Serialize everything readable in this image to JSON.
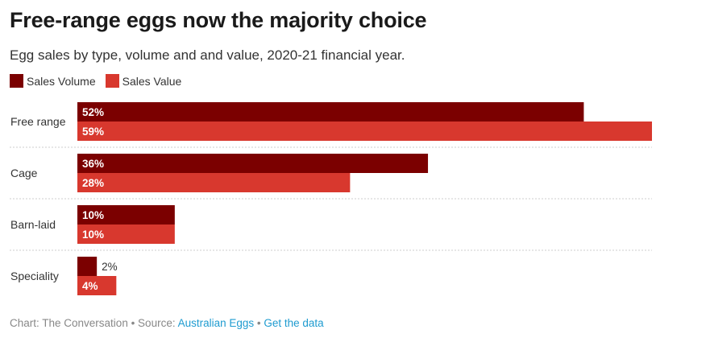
{
  "title": "Free-range eggs now the majority choice",
  "subtitle": "Egg sales by type, volume and and value, 2020-21 financial year.",
  "legend": [
    {
      "label": "Sales Volume",
      "color": "#7b0000"
    },
    {
      "label": "Sales Value",
      "color": "#d8382e"
    }
  ],
  "footer": {
    "credit": "Chart: The Conversation • Source: ",
    "source_link": "Australian Eggs",
    "separator": " • ",
    "data_link": "Get the data"
  },
  "chart_data": {
    "type": "bar",
    "orientation": "horizontal",
    "categories": [
      "Free range",
      "Cage",
      "Barn-laid",
      "Speciality"
    ],
    "series": [
      {
        "name": "Sales Volume",
        "color": "#7b0000",
        "values": [
          52,
          36,
          10,
          2
        ]
      },
      {
        "name": "Sales Value",
        "color": "#d8382e",
        "values": [
          59,
          28,
          10,
          4
        ]
      }
    ],
    "value_suffix": "%",
    "xlim": [
      0,
      59
    ],
    "grid": false,
    "legend_position": "top-left"
  }
}
